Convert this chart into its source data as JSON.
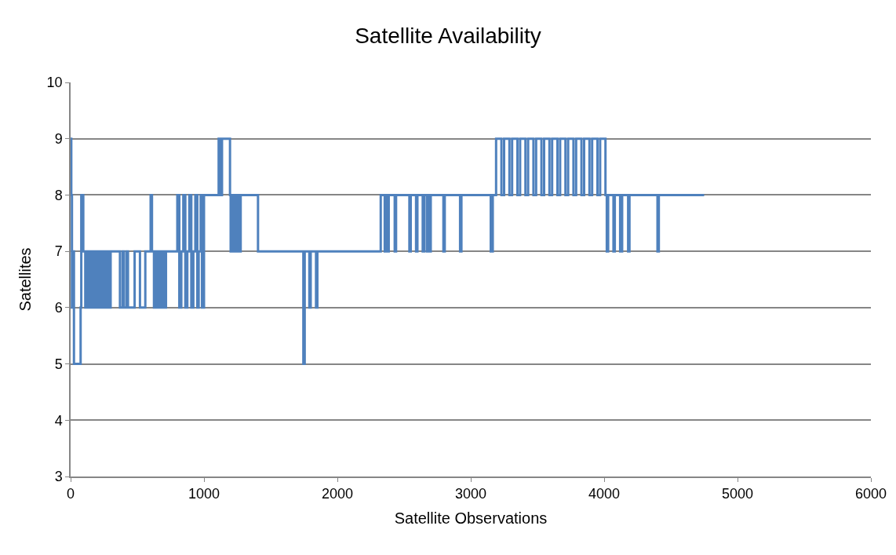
{
  "chart_data": {
    "type": "step",
    "title": "Satellite Availability",
    "xlabel": "Satellite Observations",
    "ylabel": "Satellites",
    "xlim": [
      0,
      6000
    ],
    "xticks": [
      0,
      1000,
      2000,
      3000,
      4000,
      5000,
      6000
    ],
    "ylim": [
      3,
      10
    ],
    "yticks": [
      3,
      4,
      5,
      6,
      7,
      8,
      9,
      10
    ],
    "grid": "y",
    "legend": false,
    "marker": "none",
    "line_style": "solid",
    "series": [
      {
        "color": "#4f81bd",
        "x": [
          0,
          5,
          10,
          18,
          25,
          75,
          80,
          95,
          110,
          125,
          140,
          150,
          160,
          170,
          180,
          195,
          205,
          215,
          230,
          245,
          260,
          270,
          285,
          300,
          370,
          390,
          400,
          420,
          430,
          480,
          520,
          560,
          600,
          610,
          625,
          640,
          655,
          665,
          680,
          695,
          705,
          715,
          800,
          815,
          830,
          845,
          860,
          875,
          890,
          905,
          920,
          935,
          950,
          960,
          975,
          985,
          1000,
          1110,
          1125,
          1135,
          1195,
          1200,
          1215,
          1230,
          1245,
          1260,
          1275,
          1405,
          1745,
          1755,
          1790,
          1800,
          1840,
          1850,
          2325,
          2355,
          2365,
          2375,
          2385,
          2430,
          2440,
          2540,
          2550,
          2590,
          2600,
          2640,
          2650,
          2670,
          2680,
          2690,
          2700,
          2795,
          2805,
          2920,
          2930,
          3150,
          3165,
          3190,
          3230,
          3250,
          3290,
          3310,
          3350,
          3370,
          3410,
          3430,
          3470,
          3490,
          3530,
          3550,
          3590,
          3610,
          3650,
          3670,
          3710,
          3730,
          3770,
          3790,
          3830,
          3850,
          3890,
          3910,
          3950,
          3970,
          4010,
          4020,
          4030,
          4070,
          4080,
          4120,
          4135,
          4180,
          4190,
          4400,
          4410,
          4750
        ],
        "values": [
          9,
          8,
          6,
          7,
          5,
          6,
          8,
          7,
          6,
          7,
          6,
          7,
          6,
          7,
          6,
          7,
          6,
          7,
          6,
          7,
          6,
          7,
          6,
          7,
          6,
          7,
          6,
          7,
          6,
          7,
          6,
          7,
          8,
          7,
          6,
          7,
          6,
          7,
          6,
          7,
          6,
          7,
          8,
          6,
          7,
          8,
          6,
          7,
          8,
          6,
          7,
          8,
          6,
          7,
          8,
          6,
          8,
          9,
          8,
          9,
          8,
          7,
          8,
          7,
          8,
          7,
          8,
          7,
          5,
          7,
          6,
          7,
          6,
          7,
          8,
          7,
          8,
          7,
          8,
          7,
          8,
          7,
          8,
          7,
          8,
          7,
          8,
          7,
          8,
          7,
          8,
          7,
          8,
          7,
          8,
          7,
          8,
          9,
          8,
          9,
          8,
          9,
          8,
          9,
          8,
          9,
          8,
          9,
          8,
          9,
          8,
          9,
          8,
          9,
          8,
          9,
          8,
          9,
          8,
          9,
          8,
          9,
          8,
          9,
          8,
          7,
          8,
          7,
          8,
          7,
          8,
          7,
          8,
          7,
          8,
          8
        ]
      }
    ]
  }
}
